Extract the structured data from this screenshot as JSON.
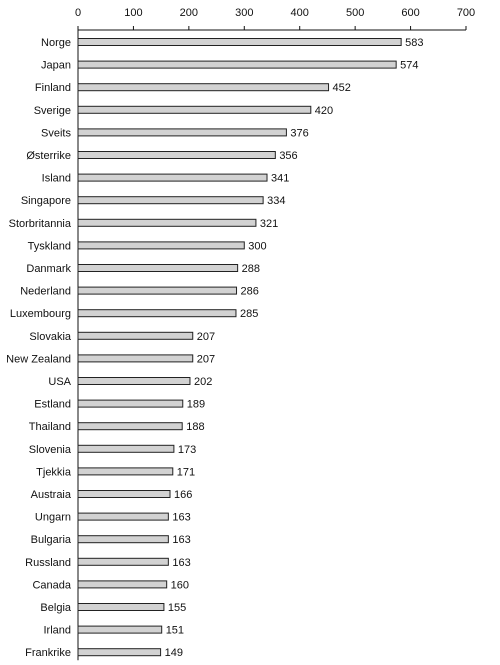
{
  "chart_data": {
    "type": "bar",
    "orientation": "horizontal",
    "categories": [
      "Norge",
      "Japan",
      "Finland",
      "Sverige",
      "Sveits",
      "Østerrike",
      "Island",
      "Singapore",
      "Storbritannia",
      "Tyskland",
      "Danmark",
      "Nederland",
      "Luxembourg",
      "Slovakia",
      "New Zealand",
      "USA",
      "Estland",
      "Thailand",
      "Slovenia",
      "Tjekkia",
      "Austraia",
      "Ungarn",
      "Bulgaria",
      "Russland",
      "Canada",
      "Belgia",
      "Irland",
      "Frankrike"
    ],
    "values": [
      583,
      574,
      452,
      420,
      376,
      356,
      341,
      334,
      321,
      300,
      288,
      286,
      285,
      207,
      207,
      202,
      189,
      188,
      173,
      171,
      166,
      163,
      163,
      163,
      160,
      155,
      151,
      149
    ],
    "xlim": [
      0,
      700
    ],
    "xticks": [
      0,
      100,
      200,
      300,
      400,
      500,
      600,
      700
    ],
    "x_axis_position": "top",
    "grid": false,
    "title": "",
    "xlabel": "",
    "ylabel": "",
    "colors": {
      "bar_fill": "#d2d2d2",
      "bar_stroke": "#222222",
      "text": "#111111"
    }
  }
}
